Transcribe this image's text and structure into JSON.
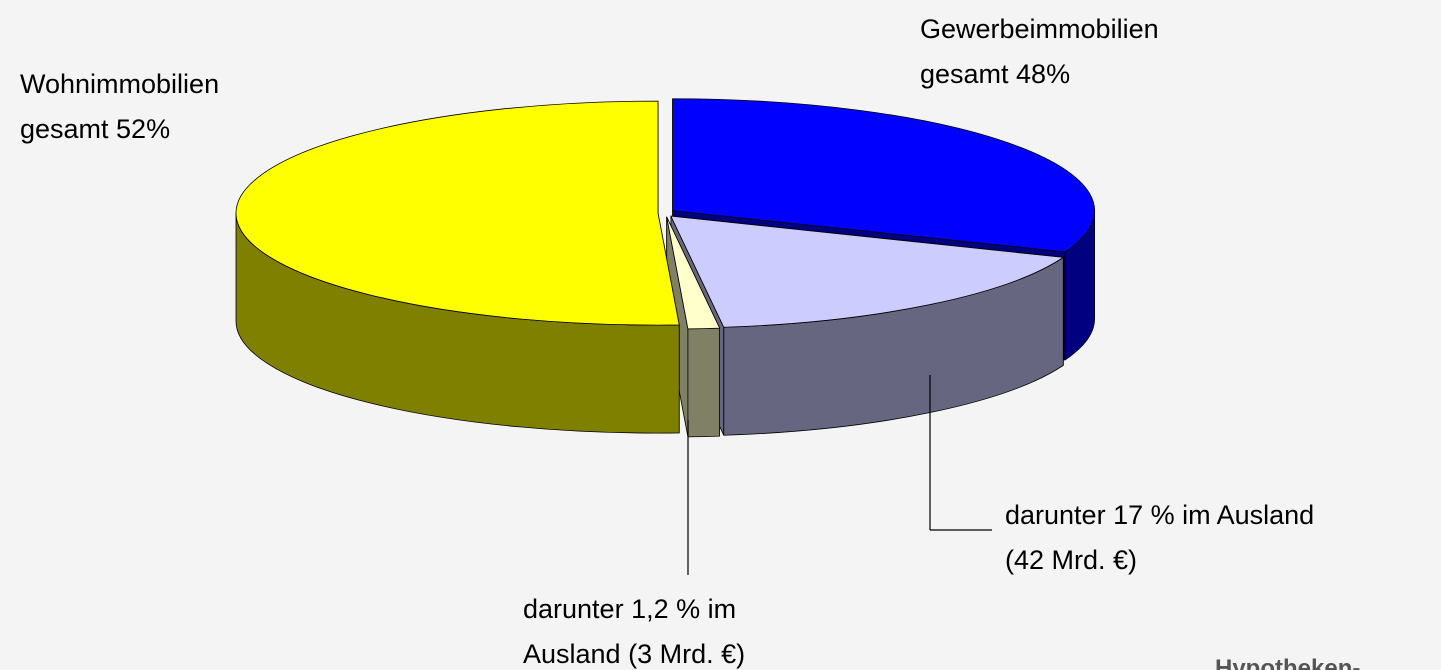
{
  "chart_data": {
    "type": "pie3d",
    "values": [
      31,
      17,
      1.2,
      50.8
    ],
    "colors": [
      "#0000ff",
      "#ccccff",
      "#ffffcc",
      "#ffff00"
    ],
    "side_colors": [
      "#000080",
      "#666680",
      "#808066",
      "#808000"
    ],
    "labels": [
      {
        "lines": [
          "Gewerbeimmobilien",
          "gesamt 48%"
        ]
      },
      {
        "lines": [
          "darunter 17 % im Ausland",
          "(42 Mrd. €)"
        ]
      },
      {
        "lines": [
          "darunter 1,2 % im",
          "Ausland (3 Mrd. €)"
        ]
      },
      {
        "lines": [
          "Wohnimmobilien",
          "gesamt 52%"
        ]
      }
    ],
    "footer": "Hypotheken-"
  }
}
